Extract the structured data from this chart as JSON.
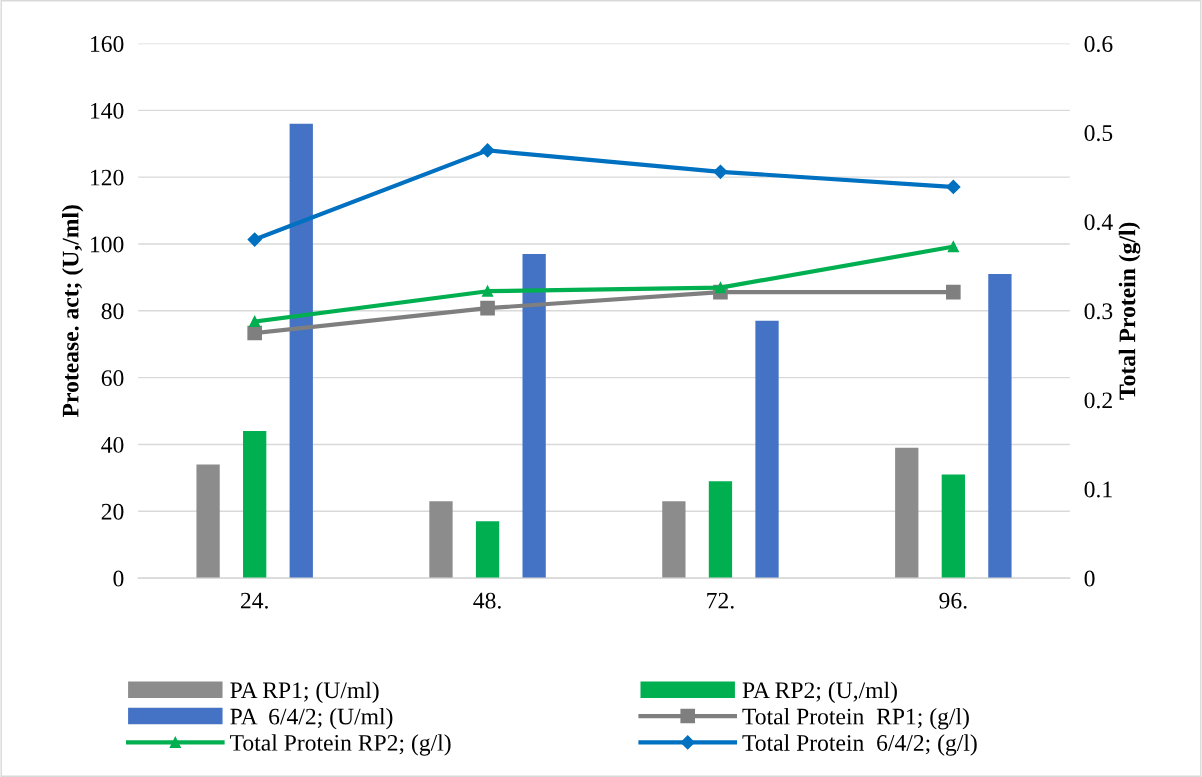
{
  "chart_data": {
    "type": "bar",
    "categories": [
      "24.",
      "48.",
      "72.",
      "96."
    ],
    "ylabel": "Protease. act; (U,/ml)",
    "y2label": "Total Protein (g/l)",
    "ylim": [
      0,
      160
    ],
    "yticks": [
      0,
      20,
      40,
      60,
      80,
      100,
      120,
      140,
      160
    ],
    "y2lim": [
      0,
      0.6
    ],
    "y2ticks": [
      0,
      0.1,
      0.2,
      0.3,
      0.4,
      0.5,
      0.6
    ],
    "grid": "y",
    "legend": "bottom",
    "series": [
      {
        "name": "PA RP1; (U/ml)",
        "color": "#8c8c8c",
        "values": [
          34,
          23,
          23,
          39
        ]
      },
      {
        "name": "PA RP2; (U,/ml)",
        "color": "#00b050",
        "values": [
          44,
          17,
          29,
          31
        ]
      },
      {
        "name": "PA  6/4/2; (U/ml)",
        "color": "#4472c4",
        "values": [
          136,
          97,
          77,
          91
        ]
      },
      {
        "name": "Total Protein  RP1; (g/l)",
        "type": "line",
        "axis": "y2",
        "marker": "square",
        "color": "#7f7f7f",
        "values": [
          0.275,
          0.303,
          0.321,
          0.321
        ]
      },
      {
        "name": "Total Protein RP2; (g/l)",
        "type": "line",
        "axis": "y2",
        "marker": "triangle",
        "color": "#00b050",
        "values": [
          0.288,
          0.322,
          0.326,
          0.372
        ]
      },
      {
        "name": "Total Protein  6/4/2; (g/l)",
        "type": "line",
        "axis": "y2",
        "marker": "diamond",
        "color": "#0070c0",
        "values": [
          0.38,
          0.48,
          0.456,
          0.439
        ]
      }
    ]
  }
}
